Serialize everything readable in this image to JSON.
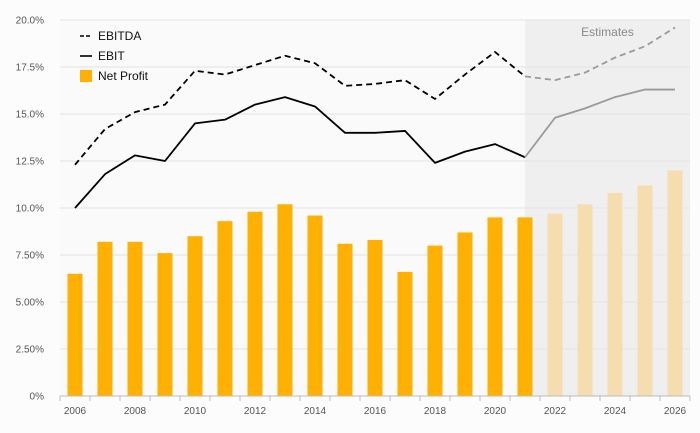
{
  "chart_data": {
    "type": "bar",
    "x": [
      2006,
      2007,
      2008,
      2009,
      2010,
      2011,
      2012,
      2013,
      2014,
      2015,
      2016,
      2017,
      2018,
      2019,
      2020,
      2021,
      2022,
      2023,
      2024,
      2025,
      2026
    ],
    "ylim": [
      0,
      20
    ],
    "y_tick_values": [
      0,
      2.5,
      5,
      7.5,
      10,
      12.5,
      15,
      17.5,
      20
    ],
    "y_tick_labels": [
      "0%",
      "2.50%",
      "5.00%",
      "7.50%",
      "10.0%",
      "12.5%",
      "15.0%",
      "17.5%",
      "20.0%"
    ],
    "x_tick_labels": [
      "2006",
      "2008",
      "2010",
      "2012",
      "2014",
      "2016",
      "2018",
      "2020",
      "2022",
      "2024",
      "2026"
    ],
    "grid": true,
    "legend_placement": "top-left",
    "estimates_label": "Estimates",
    "estimates_start_year": 2021,
    "series": [
      {
        "name": "EBITDA",
        "type": "line",
        "style": "dashed",
        "color": "#000000",
        "estimate_color": "#9a9a9a",
        "values": [
          12.3,
          14.2,
          15.1,
          15.5,
          17.3,
          17.1,
          17.6,
          18.1,
          17.7,
          16.5,
          16.6,
          16.8,
          15.8,
          17.1,
          18.3,
          17.0,
          16.8,
          17.2,
          18.0,
          18.6,
          19.6
        ]
      },
      {
        "name": "EBIT",
        "type": "line",
        "style": "solid",
        "color": "#000000",
        "estimate_color": "#9a9a9a",
        "values": [
          10.0,
          11.8,
          12.8,
          12.5,
          14.5,
          14.7,
          15.5,
          15.9,
          15.4,
          14.0,
          14.0,
          14.1,
          12.4,
          13.0,
          13.4,
          12.7,
          14.8,
          15.3,
          15.9,
          16.3,
          16.3
        ]
      },
      {
        "name": "Net Profit",
        "type": "bar",
        "color": "#ffb000",
        "estimate_color": "#f5ddb0",
        "values": [
          6.5,
          8.2,
          8.2,
          7.6,
          8.5,
          9.3,
          9.8,
          10.2,
          9.6,
          8.1,
          8.3,
          6.6,
          8.0,
          8.7,
          9.5,
          9.5,
          9.7,
          10.2,
          10.8,
          11.2,
          12.0
        ]
      }
    ]
  }
}
